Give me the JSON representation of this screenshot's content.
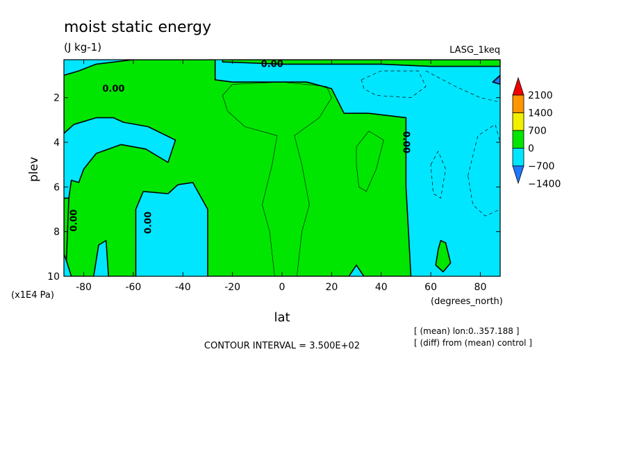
{
  "chart_data": {
    "type": "heatmap",
    "title": "moist static energy",
    "subtitle": "(J kg-1)",
    "run_label": "LASG_1keq",
    "xlabel": "lat",
    "xunits": "(degrees_north)",
    "ylabel": "plev",
    "yunits": "(x1E4 Pa)",
    "xlim": [
      -88,
      88
    ],
    "ylim": [
      10,
      0.3
    ],
    "x_ticks": [
      -80,
      -60,
      -40,
      -20,
      0,
      20,
      40,
      60,
      80
    ],
    "x_tick_labels": [
      "-80",
      "-60",
      "-40",
      "-20",
      "0",
      "20",
      "40",
      "60",
      "80"
    ],
    "y_ticks": [
      2,
      4,
      6,
      8,
      10
    ],
    "y_tick_labels": [
      "2",
      "4",
      "6",
      "8",
      "10"
    ],
    "contour_label": "0.00",
    "contour_interval_text": "CONTOUR INTERVAL = 3.500E+02",
    "notes": [
      "[ (mean) lon:0..357.188 ]",
      "[ (diff) from (mean) control ]"
    ],
    "colorbar": {
      "levels": [
        -1400,
        -700,
        0,
        700,
        1400,
        2100
      ],
      "labels": [
        "2100",
        "1400",
        "700",
        "0",
        "−700",
        "−1400"
      ],
      "colors": [
        "#1e78ff",
        "#00e6ff",
        "#00e600",
        "#f0f000",
        "#ff9600",
        "#f00000"
      ]
    },
    "fill_colors": {
      "negative": "#00e6ff",
      "positive": "#00e600",
      "deep_negative": "#1e78ff"
    },
    "regions": [
      {
        "name": "positive-main",
        "sign": "positive",
        "points": [
          [
            -88,
            1.0
          ],
          [
            -82,
            0.8
          ],
          [
            -75,
            0.5
          ],
          [
            -60,
            0.3
          ],
          [
            -27,
            0.3
          ],
          [
            -27,
            1.2
          ],
          [
            -20,
            1.3
          ],
          [
            0,
            1.3
          ],
          [
            10,
            1.3
          ],
          [
            20,
            1.6
          ],
          [
            25,
            2.7
          ],
          [
            35,
            2.7
          ],
          [
            50,
            2.9
          ],
          [
            50,
            6.0
          ],
          [
            51,
            8.0
          ],
          [
            52,
            10
          ],
          [
            33,
            10
          ],
          [
            30,
            9.5
          ],
          [
            27,
            10
          ],
          [
            -30,
            10
          ],
          [
            -30,
            7.0
          ],
          [
            -36,
            5.8
          ],
          [
            -42,
            5.9
          ],
          [
            -46,
            6.3
          ],
          [
            -56,
            6.2
          ],
          [
            -59,
            7.0
          ],
          [
            -59,
            10
          ],
          [
            -70,
            10
          ],
          [
            -71,
            8.4
          ],
          [
            -74,
            8.6
          ],
          [
            -76,
            10
          ],
          [
            -85,
            10
          ],
          [
            -87,
            9.3
          ],
          [
            -88,
            8.2
          ],
          [
            -86,
            6.5
          ],
          [
            -85,
            5.7
          ],
          [
            -82,
            5.8
          ],
          [
            -80,
            5.2
          ],
          [
            -75,
            4.5
          ],
          [
            -65,
            4.1
          ],
          [
            -55,
            4.3
          ],
          [
            -46,
            4.9
          ],
          [
            -43,
            3.9
          ],
          [
            -54,
            3.3
          ],
          [
            -64,
            3.1
          ],
          [
            -68,
            2.9
          ],
          [
            -75,
            2.9
          ],
          [
            -84,
            3.2
          ],
          [
            -88,
            3.6
          ]
        ]
      },
      {
        "name": "positive-top-band",
        "sign": "positive",
        "points": [
          [
            -24,
            0.3
          ],
          [
            88,
            0.3
          ],
          [
            88,
            0.6
          ],
          [
            60,
            0.6
          ],
          [
            40,
            0.5
          ],
          [
            0,
            0.5
          ],
          [
            -24,
            0.4
          ]
        ]
      },
      {
        "name": "positive-southpole-edge",
        "sign": "positive",
        "points": [
          [
            -88,
            6.5
          ],
          [
            -86,
            6.5
          ],
          [
            -87,
            9.3
          ],
          [
            -88,
            9.0
          ]
        ]
      },
      {
        "name": "positive-60N-blob",
        "sign": "positive",
        "points": [
          [
            64,
            8.4
          ],
          [
            66,
            8.5
          ],
          [
            68,
            9.4
          ],
          [
            65,
            9.8
          ],
          [
            62,
            9.5
          ],
          [
            63,
            8.8
          ]
        ]
      },
      {
        "name": "deep-negative-edge",
        "sign": "deep_negative",
        "points": [
          [
            86,
            1.2
          ],
          [
            88,
            1.0
          ],
          [
            88,
            1.4
          ],
          [
            85,
            1.3
          ]
        ]
      }
    ],
    "thin_contours": [
      {
        "name": "thin-contour-eq",
        "points": [
          [
            -24,
            1.9
          ],
          [
            -20,
            1.4
          ],
          [
            0,
            1.3
          ],
          [
            18,
            1.5
          ],
          [
            20,
            2.0
          ],
          [
            15,
            2.9
          ],
          [
            5,
            3.7
          ],
          [
            8,
            5.0
          ],
          [
            11,
            6.8
          ],
          [
            8,
            8.0
          ],
          [
            6,
            10
          ]
        ]
      },
      {
        "name": "thin-contour-eq-2",
        "points": [
          [
            -24,
            1.9
          ],
          [
            -22,
            2.6
          ],
          [
            -15,
            3.3
          ],
          [
            -2,
            3.7
          ],
          [
            -4,
            5.0
          ],
          [
            -8,
            6.8
          ],
          [
            -5,
            8.0
          ],
          [
            -3,
            10
          ]
        ]
      },
      {
        "name": "thin-contour-30n",
        "points": [
          [
            30,
            4.2
          ],
          [
            35,
            3.5
          ],
          [
            41,
            3.9
          ],
          [
            38,
            5.2
          ],
          [
            34,
            6.2
          ],
          [
            31,
            6.0
          ],
          [
            30,
            5.0
          ],
          [
            30,
            4.2
          ]
        ]
      }
    ],
    "dashed_contours": [
      {
        "name": "dashed-contour-ne",
        "points": [
          [
            32,
            1.2
          ],
          [
            40,
            0.8
          ],
          [
            55,
            0.8
          ],
          [
            58,
            1.5
          ],
          [
            52,
            2.0
          ],
          [
            38,
            1.9
          ],
          [
            33,
            1.6
          ],
          [
            32,
            1.2
          ]
        ]
      },
      {
        "name": "dashed-contour-ne-2",
        "points": [
          [
            58,
            0.8
          ],
          [
            70,
            1.5
          ],
          [
            80,
            2.0
          ],
          [
            88,
            2.2
          ]
        ]
      },
      {
        "name": "dashed-contour-60n",
        "points": [
          [
            60,
            5.0
          ],
          [
            63,
            4.4
          ],
          [
            66,
            5.2
          ],
          [
            64,
            6.5
          ],
          [
            61,
            6.3
          ],
          [
            60,
            5.0
          ]
        ]
      },
      {
        "name": "dashed-contour-80n",
        "points": [
          [
            75,
            5.5
          ],
          [
            79,
            3.7
          ],
          [
            86,
            3.2
          ],
          [
            88,
            4.0
          ],
          [
            88,
            7.0
          ],
          [
            82,
            7.3
          ],
          [
            77,
            6.8
          ],
          [
            75,
            5.5
          ]
        ]
      }
    ],
    "contour_label_positions": [
      {
        "x": -68,
        "y": 1.6,
        "rot": 0
      },
      {
        "x": -4,
        "y": 0.5,
        "rot": 0
      },
      {
        "x": -84,
        "y": 7.5,
        "rot": -90
      },
      {
        "x": -54,
        "y": 7.6,
        "rot": -90
      },
      {
        "x": 50,
        "y": 4.0,
        "rot": 90
      }
    ]
  }
}
